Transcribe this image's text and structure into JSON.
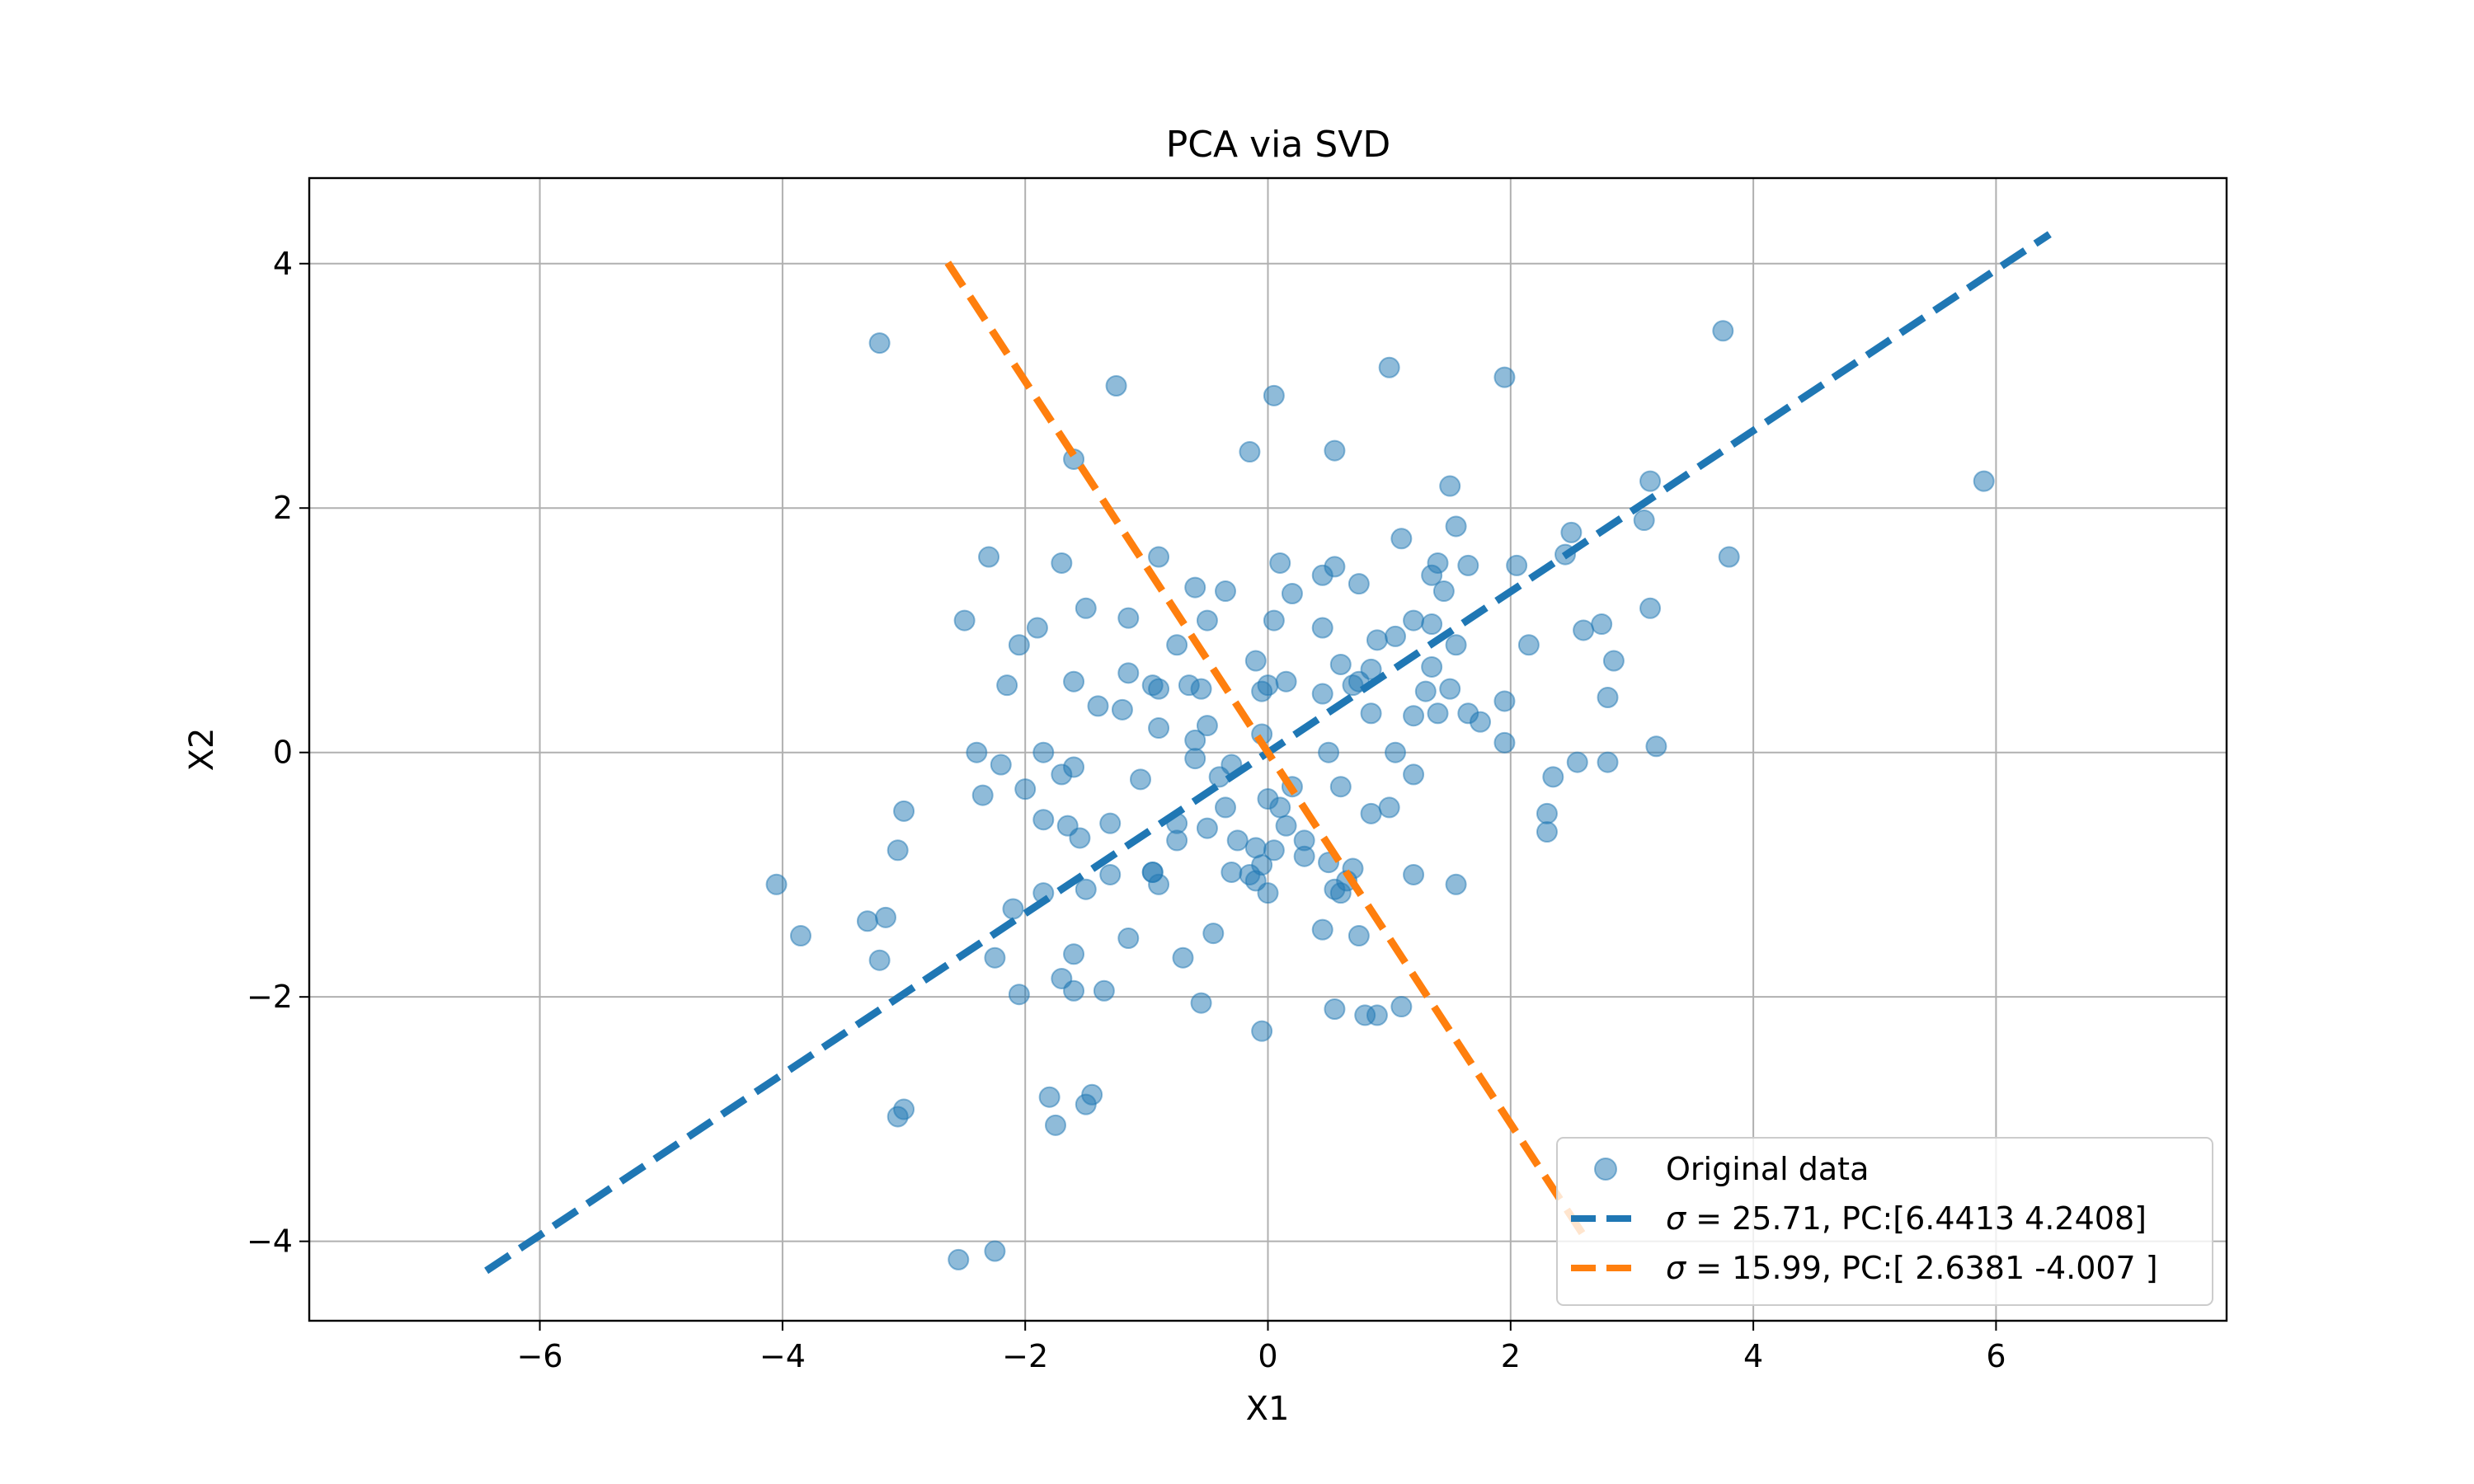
{
  "chart_data": {
    "type": "scatter",
    "title": "PCA via SVD",
    "xlabel": "X1",
    "ylabel": "X2",
    "xlim": [
      -7.9,
      7.9
    ],
    "ylim": [
      -4.65,
      4.7
    ],
    "xticks": [
      -6,
      -4,
      -2,
      0,
      2,
      4,
      6
    ],
    "yticks": [
      -4,
      -2,
      0,
      2,
      4
    ],
    "xtick_labels": [
      "−6",
      "−4",
      "−2",
      "0",
      "2",
      "4",
      "6"
    ],
    "ytick_labels": [
      "−4",
      "−2",
      "0",
      "2",
      "4"
    ],
    "grid": true,
    "legend_position": "lower right",
    "colors": {
      "points": "#1f77b4",
      "pc1": "#1f77b4",
      "pc2": "#ff7f0e"
    },
    "series": [
      {
        "name": "Original data",
        "kind": "scatter",
        "points": [
          [
            -3.2,
            3.35
          ],
          [
            -1.25,
            3.0
          ],
          [
            0.05,
            2.92
          ],
          [
            1.0,
            3.15
          ],
          [
            1.95,
            3.07
          ],
          [
            3.75,
            3.45
          ],
          [
            -1.6,
            2.4
          ],
          [
            -0.15,
            2.46
          ],
          [
            0.55,
            2.47
          ],
          [
            1.5,
            2.18
          ],
          [
            3.15,
            2.22
          ],
          [
            5.9,
            2.22
          ],
          [
            -2.3,
            1.6
          ],
          [
            -1.7,
            1.55
          ],
          [
            -0.9,
            1.6
          ],
          [
            0.1,
            1.55
          ],
          [
            0.55,
            1.52
          ],
          [
            1.4,
            1.55
          ],
          [
            1.55,
            1.85
          ],
          [
            1.65,
            1.53
          ],
          [
            2.05,
            1.53
          ],
          [
            2.5,
            1.8
          ],
          [
            3.1,
            1.9
          ],
          [
            3.8,
            1.6
          ],
          [
            -2.5,
            1.08
          ],
          [
            -1.9,
            1.02
          ],
          [
            -1.5,
            1.18
          ],
          [
            -1.15,
            1.1
          ],
          [
            -0.6,
            1.35
          ],
          [
            -0.35,
            1.32
          ],
          [
            0.2,
            1.3
          ],
          [
            0.45,
            1.45
          ],
          [
            0.75,
            1.38
          ],
          [
            1.1,
            1.75
          ],
          [
            1.35,
            1.45
          ],
          [
            1.45,
            1.32
          ],
          [
            2.45,
            1.62
          ],
          [
            3.15,
            1.18
          ],
          [
            -2.05,
            0.88
          ],
          [
            -0.75,
            0.88
          ],
          [
            -0.5,
            1.08
          ],
          [
            0.05,
            1.08
          ],
          [
            0.45,
            1.02
          ],
          [
            0.9,
            0.92
          ],
          [
            1.05,
            0.95
          ],
          [
            1.2,
            1.08
          ],
          [
            1.35,
            1.05
          ],
          [
            1.55,
            0.88
          ],
          [
            2.15,
            0.88
          ],
          [
            2.6,
            1.0
          ],
          [
            2.75,
            1.05
          ],
          [
            2.85,
            0.75
          ],
          [
            -2.15,
            0.55
          ],
          [
            -1.6,
            0.58
          ],
          [
            -1.15,
            0.65
          ],
          [
            -0.95,
            0.55
          ],
          [
            -0.55,
            0.52
          ],
          [
            -0.1,
            0.75
          ],
          [
            -0.05,
            0.5
          ],
          [
            0.15,
            0.58
          ],
          [
            0.6,
            0.72
          ],
          [
            0.75,
            0.58
          ],
          [
            0.85,
            0.68
          ],
          [
            1.3,
            0.5
          ],
          [
            1.35,
            0.7
          ],
          [
            1.5,
            0.52
          ],
          [
            1.95,
            0.42
          ],
          [
            2.8,
            0.45
          ],
          [
            -2.4,
            0.0
          ],
          [
            -2.2,
            -0.1
          ],
          [
            -1.85,
            0.0
          ],
          [
            -1.4,
            0.38
          ],
          [
            -1.2,
            0.35
          ],
          [
            -0.9,
            0.2
          ],
          [
            -0.6,
            0.1
          ],
          [
            -0.5,
            0.22
          ],
          [
            -0.05,
            0.15
          ],
          [
            0.5,
            0.0
          ],
          [
            0.85,
            0.32
          ],
          [
            1.05,
            0.0
          ],
          [
            1.2,
            0.3
          ],
          [
            1.4,
            0.32
          ],
          [
            1.65,
            0.32
          ],
          [
            1.75,
            0.25
          ],
          [
            1.95,
            0.08
          ],
          [
            2.55,
            -0.08
          ],
          [
            2.8,
            -0.08
          ],
          [
            3.2,
            0.05
          ],
          [
            -2.35,
            -0.35
          ],
          [
            -2.0,
            -0.3
          ],
          [
            -1.7,
            -0.18
          ],
          [
            -1.6,
            -0.12
          ],
          [
            -1.05,
            -0.22
          ],
          [
            -0.6,
            -0.05
          ],
          [
            -0.4,
            -0.2
          ],
          [
            -0.35,
            -0.45
          ],
          [
            0.0,
            -0.38
          ],
          [
            0.1,
            -0.45
          ],
          [
            0.2,
            -0.28
          ],
          [
            0.6,
            -0.28
          ],
          [
            1.0,
            -0.45
          ],
          [
            1.2,
            -0.18
          ],
          [
            2.35,
            -0.2
          ],
          [
            2.3,
            -0.5
          ],
          [
            2.3,
            -0.65
          ],
          [
            -3.0,
            -0.48
          ],
          [
            -3.05,
            -0.8
          ],
          [
            -1.85,
            -0.55
          ],
          [
            -1.65,
            -0.6
          ],
          [
            -1.55,
            -0.7
          ],
          [
            -1.3,
            -0.58
          ],
          [
            -0.75,
            -0.72
          ],
          [
            -0.5,
            -0.62
          ],
          [
            -0.25,
            -0.72
          ],
          [
            -0.1,
            -0.78
          ],
          [
            0.05,
            -0.8
          ],
          [
            0.15,
            -0.6
          ],
          [
            0.3,
            -0.72
          ],
          [
            0.3,
            -0.85
          ],
          [
            0.85,
            -0.5
          ],
          [
            -4.05,
            -1.08
          ],
          [
            -3.85,
            -1.5
          ],
          [
            -3.3,
            -1.38
          ],
          [
            -3.15,
            -1.35
          ],
          [
            -3.2,
            -1.7
          ],
          [
            -2.1,
            -1.28
          ],
          [
            -1.85,
            -1.15
          ],
          [
            -1.5,
            -1.12
          ],
          [
            -1.3,
            -1.0
          ],
          [
            -0.95,
            -0.98
          ],
          [
            -0.9,
            -1.08
          ],
          [
            -0.3,
            -0.98
          ],
          [
            -0.15,
            -1.0
          ],
          [
            -0.1,
            -1.05
          ],
          [
            -0.05,
            -0.92
          ],
          [
            0.0,
            -1.15
          ],
          [
            0.5,
            -0.9
          ],
          [
            0.55,
            -1.12
          ],
          [
            0.6,
            -1.15
          ],
          [
            0.65,
            -1.05
          ],
          [
            1.2,
            -1.0
          ],
          [
            1.55,
            -1.08
          ],
          [
            -2.25,
            -1.68
          ],
          [
            -2.05,
            -1.98
          ],
          [
            -1.7,
            -1.85
          ],
          [
            -1.6,
            -1.65
          ],
          [
            -1.6,
            -1.95
          ],
          [
            -1.35,
            -1.95
          ],
          [
            -1.15,
            -1.52
          ],
          [
            -0.7,
            -1.68
          ],
          [
            -0.55,
            -2.05
          ],
          [
            -0.45,
            -1.48
          ],
          [
            0.45,
            -1.45
          ],
          [
            0.55,
            -2.1
          ],
          [
            0.75,
            -1.5
          ],
          [
            0.8,
            -2.15
          ],
          [
            0.9,
            -2.15
          ],
          [
            1.1,
            -2.08
          ],
          [
            -0.05,
            -2.28
          ],
          [
            -3.0,
            -2.92
          ],
          [
            -3.05,
            -2.98
          ],
          [
            -1.8,
            -2.82
          ],
          [
            -1.75,
            -3.05
          ],
          [
            -1.45,
            -2.8
          ],
          [
            -1.5,
            -2.88
          ],
          [
            -2.55,
            -4.15
          ],
          [
            -2.25,
            -4.08
          ],
          [
            -0.9,
            0.52
          ],
          [
            0.0,
            0.55
          ],
          [
            0.45,
            0.48
          ],
          [
            -0.95,
            -0.98
          ],
          [
            0.7,
            -0.95
          ],
          [
            -0.75,
            -0.58
          ],
          [
            0.7,
            0.55
          ],
          [
            -0.65,
            0.55
          ],
          [
            -0.3,
            -0.1
          ]
        ]
      },
      {
        "name": "σ = 25.71, PC:[6.4413 4.2408]",
        "kind": "line",
        "style": "dashed",
        "x": [
          -6.4413,
          6.4413
        ],
        "y": [
          -4.2408,
          4.2408
        ]
      },
      {
        "name": "σ = 15.99, PC:[ 2.6381 -4.007 ]",
        "kind": "line",
        "style": "dashed",
        "x": [
          -2.6381,
          2.6381
        ],
        "y": [
          4.007,
          -4.007
        ]
      }
    ],
    "legend": {
      "entries": [
        {
          "label_prefix": "σ",
          "label_rest": " = 25.71, PC:[6.4413 4.2408]",
          "plain": "Original data"
        }
      ],
      "scatter_label": "Original data",
      "pc1_sigma": "σ",
      "pc1_rest": " = 25.71, PC:[6.4413 4.2408]",
      "pc2_sigma": "σ",
      "pc2_rest": " = 15.99, PC:[ 2.6381 -4.007 ]"
    }
  }
}
